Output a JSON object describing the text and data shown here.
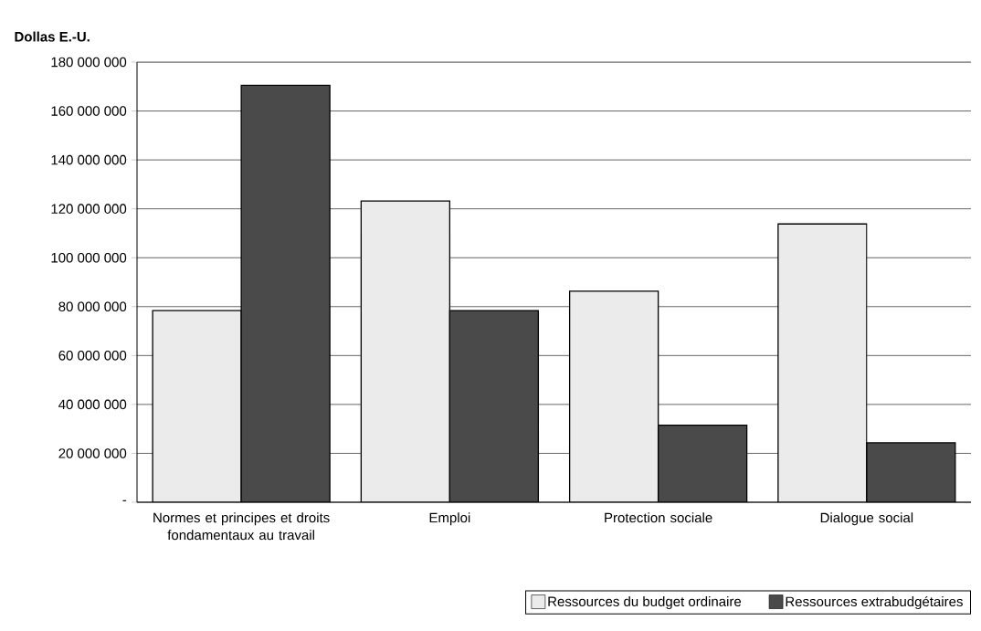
{
  "chart_data": {
    "type": "bar",
    "ylabel": "Dollas E.-U.",
    "categories": [
      "Normes et principes et droits fondamentaux au travail",
      "Emploi",
      "Protection sociale",
      "Dialogue social"
    ],
    "series": [
      {
        "name": "Ressources du budget ordinaire",
        "color": "#ebebeb",
        "values": [
          78400000,
          123200000,
          86300000,
          113800000
        ]
      },
      {
        "name": "Ressources extrabudgétaires",
        "color": "#4a4a4a",
        "values": [
          170500000,
          78400000,
          31500000,
          24300000
        ]
      }
    ],
    "ylim": [
      0,
      180000000
    ],
    "yticks": [
      {
        "value": 0,
        "label": "-"
      },
      {
        "value": 20000000,
        "label": "20 000 000"
      },
      {
        "value": 40000000,
        "label": "40 000 000"
      },
      {
        "value": 60000000,
        "label": "60 000 000"
      },
      {
        "value": 80000000,
        "label": "80 000 000"
      },
      {
        "value": 100000000,
        "label": "100 000 000"
      },
      {
        "value": 120000000,
        "label": "120 000 000"
      },
      {
        "value": 140000000,
        "label": "140 000 000"
      },
      {
        "value": 160000000,
        "label": "160 000 000"
      },
      {
        "value": 180000000,
        "label": "180 000 000"
      }
    ],
    "grid": "y",
    "legend": "bottom right"
  }
}
